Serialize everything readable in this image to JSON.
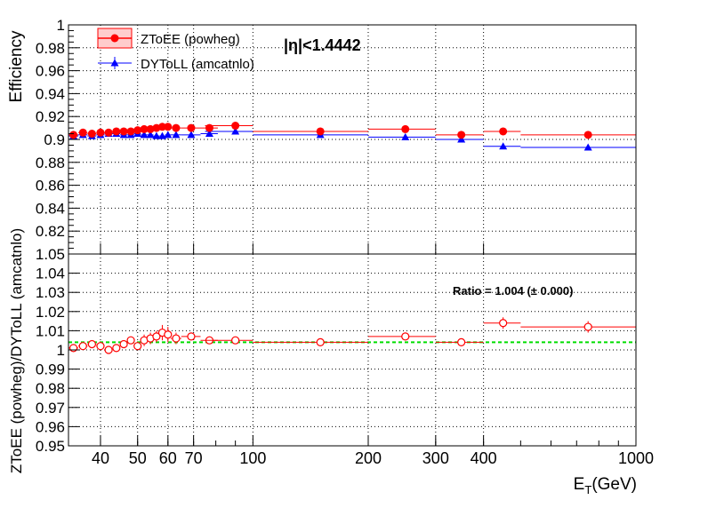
{
  "chart_data": [
    {
      "type": "scatter",
      "panel": "efficiency",
      "ylabel": "Efficiency",
      "ylim": [
        0.8,
        1.0
      ],
      "yticks": [
        "0.82",
        "0.84",
        "0.86",
        "0.88",
        "0.9",
        "0.92",
        "0.94",
        "0.96",
        "0.98",
        "1"
      ],
      "x_scale": "log",
      "xlim": [
        33,
        1000
      ],
      "grid": true,
      "legend_position": "top-left",
      "annotation": "|η|<1.4442",
      "series": [
        {
          "name": "ZToEE (powheg)",
          "color": "#ff0000",
          "marker": "filled-circle",
          "points": [
            {
              "x": 34,
              "y": 0.904,
              "xlo": 33,
              "xhi": 35
            },
            {
              "x": 36,
              "y": 0.906,
              "xlo": 35,
              "xhi": 37
            },
            {
              "x": 38,
              "y": 0.905,
              "xlo": 37,
              "xhi": 39
            },
            {
              "x": 40,
              "y": 0.906,
              "xlo": 39,
              "xhi": 41
            },
            {
              "x": 42,
              "y": 0.906,
              "xlo": 41,
              "xhi": 43
            },
            {
              "x": 44,
              "y": 0.907,
              "xlo": 43,
              "xhi": 45
            },
            {
              "x": 46,
              "y": 0.907,
              "xlo": 45,
              "xhi": 47
            },
            {
              "x": 48,
              "y": 0.907,
              "xlo": 47,
              "xhi": 49
            },
            {
              "x": 50,
              "y": 0.908,
              "xlo": 49,
              "xhi": 51
            },
            {
              "x": 52,
              "y": 0.909,
              "xlo": 51,
              "xhi": 53
            },
            {
              "x": 54,
              "y": 0.909,
              "xlo": 53,
              "xhi": 55
            },
            {
              "x": 56,
              "y": 0.91,
              "xlo": 55,
              "xhi": 57
            },
            {
              "x": 58,
              "y": 0.911,
              "xlo": 57,
              "xhi": 59
            },
            {
              "x": 60,
              "y": 0.911,
              "xlo": 59,
              "xhi": 61
            },
            {
              "x": 63,
              "y": 0.91,
              "xlo": 61,
              "xhi": 65
            },
            {
              "x": 69,
              "y": 0.91,
              "xlo": 65,
              "xhi": 73
            },
            {
              "x": 77,
              "y": 0.91,
              "xlo": 73,
              "xhi": 81
            },
            {
              "x": 90,
              "y": 0.912,
              "xlo": 75,
              "xhi": 100
            },
            {
              "x": 150,
              "y": 0.907,
              "xlo": 100,
              "xhi": 200
            },
            {
              "x": 250,
              "y": 0.909,
              "xlo": 200,
              "xhi": 300
            },
            {
              "x": 350,
              "y": 0.904,
              "xlo": 300,
              "xhi": 400
            },
            {
              "x": 450,
              "y": 0.907,
              "xlo": 400,
              "xhi": 500
            },
            {
              "x": 750,
              "y": 0.904,
              "xlo": 500,
              "xhi": 1000
            }
          ]
        },
        {
          "name": "DYToLL (amcatnlo)",
          "color": "#0000ff",
          "marker": "filled-triangle",
          "points": [
            {
              "x": 34,
              "y": 0.903,
              "xlo": 33,
              "xhi": 35
            },
            {
              "x": 36,
              "y": 0.904,
              "xlo": 35,
              "xhi": 37
            },
            {
              "x": 38,
              "y": 0.903,
              "xlo": 37,
              "xhi": 39
            },
            {
              "x": 40,
              "y": 0.904,
              "xlo": 39,
              "xhi": 41
            },
            {
              "x": 42,
              "y": 0.905,
              "xlo": 41,
              "xhi": 43
            },
            {
              "x": 44,
              "y": 0.905,
              "xlo": 43,
              "xhi": 45
            },
            {
              "x": 46,
              "y": 0.904,
              "xlo": 45,
              "xhi": 47
            },
            {
              "x": 48,
              "y": 0.904,
              "xlo": 47,
              "xhi": 49
            },
            {
              "x": 50,
              "y": 0.905,
              "xlo": 49,
              "xhi": 51
            },
            {
              "x": 52,
              "y": 0.904,
              "xlo": 51,
              "xhi": 53
            },
            {
              "x": 54,
              "y": 0.904,
              "xlo": 53,
              "xhi": 55
            },
            {
              "x": 56,
              "y": 0.903,
              "xlo": 55,
              "xhi": 57
            },
            {
              "x": 58,
              "y": 0.903,
              "xlo": 57,
              "xhi": 59
            },
            {
              "x": 60,
              "y": 0.904,
              "xlo": 59,
              "xhi": 61
            },
            {
              "x": 63,
              "y": 0.904,
              "xlo": 61,
              "xhi": 65
            },
            {
              "x": 69,
              "y": 0.904,
              "xlo": 65,
              "xhi": 73
            },
            {
              "x": 77,
              "y": 0.905,
              "xlo": 73,
              "xhi": 81
            },
            {
              "x": 90,
              "y": 0.907,
              "xlo": 75,
              "xhi": 100
            },
            {
              "x": 150,
              "y": 0.904,
              "xlo": 100,
              "xhi": 200
            },
            {
              "x": 250,
              "y": 0.902,
              "xlo": 200,
              "xhi": 300
            },
            {
              "x": 350,
              "y": 0.9,
              "xlo": 300,
              "xhi": 400
            },
            {
              "x": 450,
              "y": 0.894,
              "xlo": 400,
              "xhi": 500
            },
            {
              "x": 750,
              "y": 0.893,
              "xlo": 500,
              "xhi": 1000
            }
          ]
        }
      ]
    },
    {
      "type": "scatter",
      "panel": "ratio",
      "ylabel": "ZToEE (powheg)/DYToLL (amcatnlo)",
      "xlabel": "E_T(GeV)",
      "xlabel_main": "E",
      "xlabel_sub": "T",
      "xlabel_unit": "(GeV)",
      "ylim": [
        0.95,
        1.05
      ],
      "yticks": [
        "0.95",
        "0.96",
        "0.97",
        "0.98",
        "0.99",
        "1",
        "1.01",
        "1.02",
        "1.03",
        "1.04",
        "1.05"
      ],
      "x_scale": "log",
      "xlim": [
        33,
        1000
      ],
      "xticks": [
        "40",
        "50",
        "60",
        "70",
        "100",
        "200",
        "300",
        "400",
        "1000"
      ],
      "grid": true,
      "reference_line": 1.004,
      "reference_line_color": "#00dd00",
      "annotation": "Ratio = 1.004 (± 0.000)",
      "series": [
        {
          "marker": "open-circle",
          "color": "#ff0000",
          "points": [
            {
              "x": 34,
              "y": 1.001,
              "err": 0.002,
              "xlo": 33,
              "xhi": 35
            },
            {
              "x": 36,
              "y": 1.002,
              "err": 0.002,
              "xlo": 35,
              "xhi": 37
            },
            {
              "x": 38,
              "y": 1.003,
              "err": 0.002,
              "xlo": 37,
              "xhi": 39
            },
            {
              "x": 40,
              "y": 1.002,
              "err": 0.002,
              "xlo": 39,
              "xhi": 41
            },
            {
              "x": 42,
              "y": 1.0,
              "err": 0.002,
              "xlo": 41,
              "xhi": 43
            },
            {
              "x": 44,
              "y": 1.001,
              "err": 0.002,
              "xlo": 43,
              "xhi": 45
            },
            {
              "x": 46,
              "y": 1.003,
              "err": 0.002,
              "xlo": 45,
              "xhi": 47
            },
            {
              "x": 48,
              "y": 1.005,
              "err": 0.002,
              "xlo": 47,
              "xhi": 49
            },
            {
              "x": 50,
              "y": 1.002,
              "err": 0.002,
              "xlo": 49,
              "xhi": 51
            },
            {
              "x": 52,
              "y": 1.005,
              "err": 0.003,
              "xlo": 51,
              "xhi": 53
            },
            {
              "x": 54,
              "y": 1.006,
              "err": 0.003,
              "xlo": 53,
              "xhi": 55
            },
            {
              "x": 56,
              "y": 1.007,
              "err": 0.003,
              "xlo": 55,
              "xhi": 57
            },
            {
              "x": 58,
              "y": 1.009,
              "err": 0.004,
              "xlo": 57,
              "xhi": 59
            },
            {
              "x": 60,
              "y": 1.008,
              "err": 0.004,
              "xlo": 59,
              "xhi": 61
            },
            {
              "x": 63,
              "y": 1.006,
              "err": 0.003,
              "xlo": 61,
              "xhi": 65
            },
            {
              "x": 69,
              "y": 1.007,
              "err": 0.002,
              "xlo": 65,
              "xhi": 73
            },
            {
              "x": 77,
              "y": 1.005,
              "err": 0.002,
              "xlo": 73,
              "xhi": 81
            },
            {
              "x": 90,
              "y": 1.005,
              "err": 0.001,
              "xlo": 75,
              "xhi": 100
            },
            {
              "x": 150,
              "y": 1.004,
              "err": 0.001,
              "xlo": 100,
              "xhi": 200
            },
            {
              "x": 250,
              "y": 1.007,
              "err": 0.001,
              "xlo": 200,
              "xhi": 300
            },
            {
              "x": 350,
              "y": 1.004,
              "err": 0.002,
              "xlo": 300,
              "xhi": 400
            },
            {
              "x": 450,
              "y": 1.014,
              "err": 0.003,
              "xlo": 400,
              "xhi": 500
            },
            {
              "x": 750,
              "y": 1.012,
              "err": 0.003,
              "xlo": 500,
              "xhi": 1000
            }
          ]
        }
      ]
    }
  ]
}
